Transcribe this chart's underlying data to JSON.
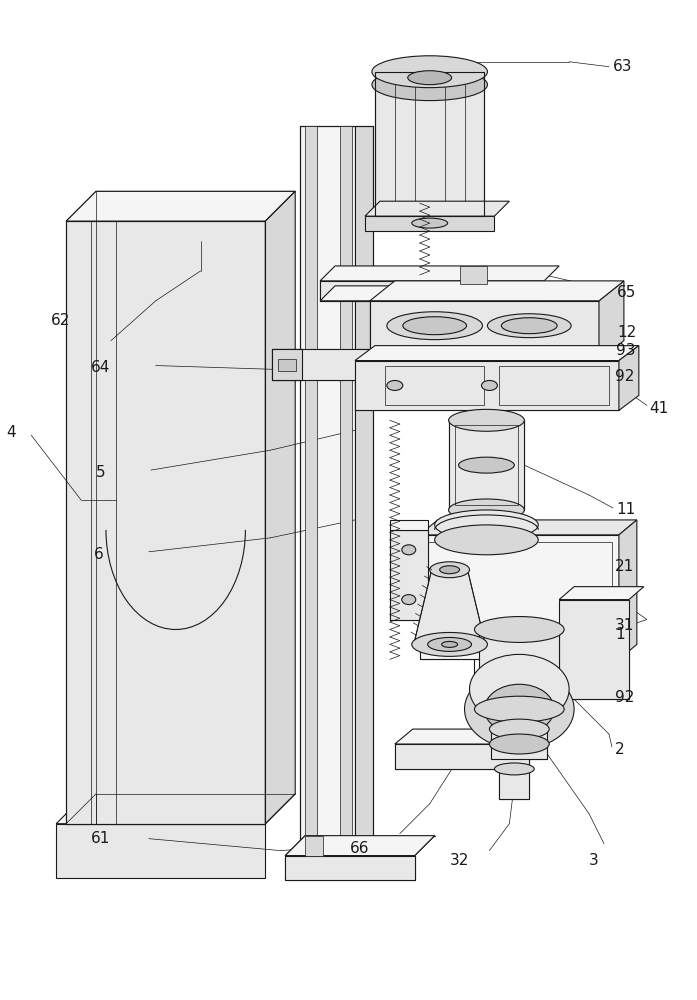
{
  "bg_color": "#ffffff",
  "lc": "#1a1a1a",
  "lw": 0.8,
  "tlw": 0.5,
  "fs": 10,
  "figsize": [
    6.97,
    10.0
  ],
  "dpi": 100,
  "shade1": "#f5f5f5",
  "shade2": "#e8e8e8",
  "shade3": "#d8d8d8",
  "shade4": "#c8c8c8",
  "shade5": "#b8b8b8"
}
